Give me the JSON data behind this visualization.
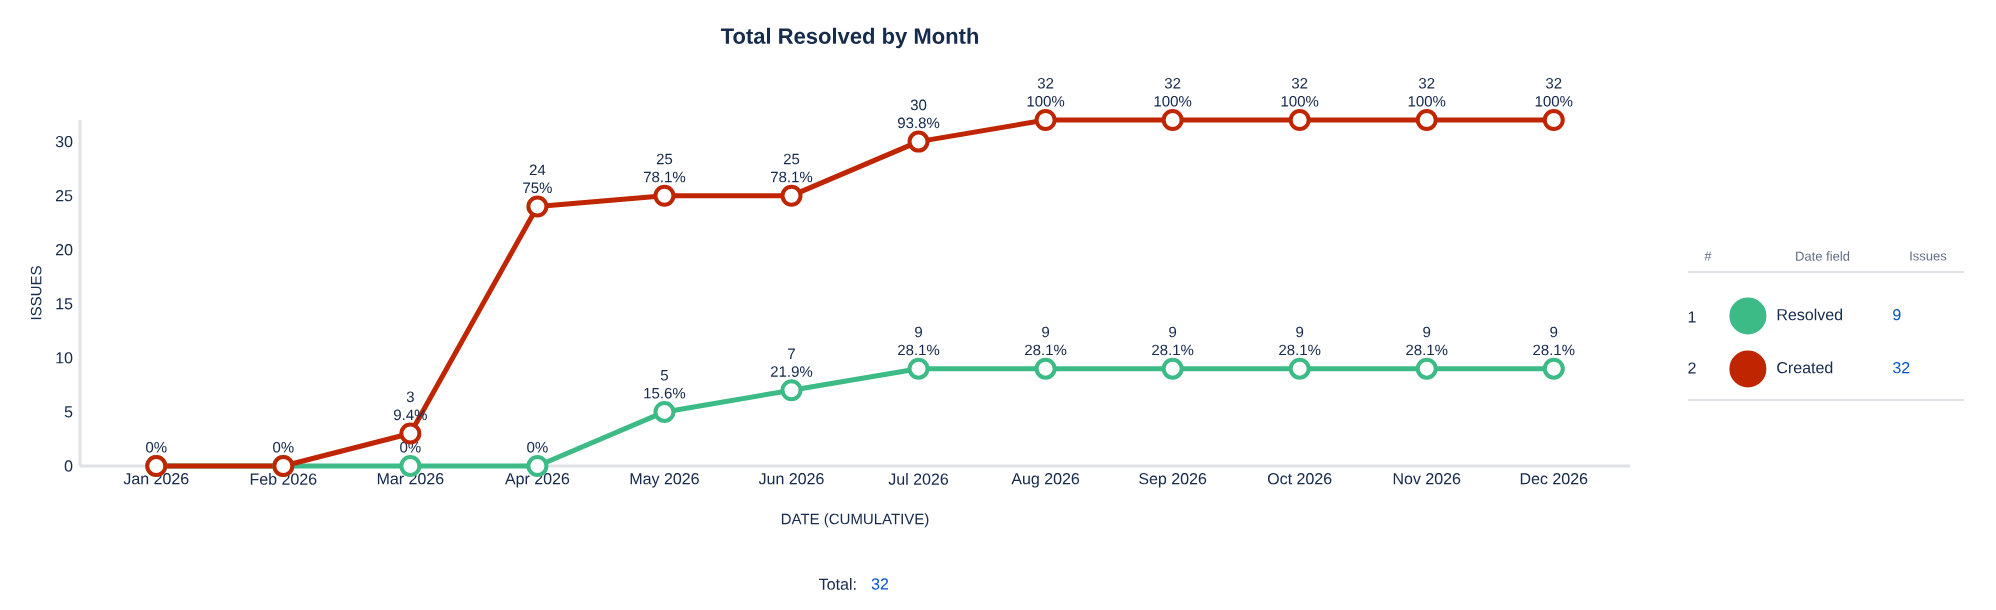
{
  "chart_data": {
    "type": "line",
    "title": "Total Resolved by Month",
    "xlabel": "DATE (CUMULATIVE)",
    "ylabel": "ISSUES",
    "categories": [
      "Jan 2026",
      "Feb 2026",
      "Mar 2026",
      "Apr 2026",
      "May 2026",
      "Jun 2026",
      "Jul 2026",
      "Aug 2026",
      "Sep 2026",
      "Oct 2026",
      "Nov 2026",
      "Dec 2026"
    ],
    "series": [
      {
        "name": "Resolved",
        "color": "#3dbb87",
        "values": [
          0,
          0,
          0,
          0,
          5,
          7,
          9,
          9,
          9,
          9,
          9,
          9
        ],
        "value_labels": [
          null,
          null,
          null,
          null,
          "5",
          "7",
          "9",
          "9",
          "9",
          "9",
          "9",
          "9"
        ]
      },
      {
        "name": "Created",
        "color": "#bf2600",
        "values": [
          0,
          0,
          3,
          24,
          25,
          25,
          30,
          32,
          32,
          32,
          32,
          32
        ],
        "value_labels": [
          null,
          null,
          "3",
          "24",
          "25",
          "25",
          "30",
          "32",
          "32",
          "32",
          "32",
          "32"
        ]
      }
    ],
    "ylim": [
      0,
      32
    ],
    "yticks": [
      0,
      5,
      10,
      15,
      20,
      25,
      30
    ],
    "grid": false,
    "legend": "right",
    "marker": "circle",
    "line_style": "solid",
    "annotations": [
      "#",
      "Date field",
      "Issues",
      "1",
      "2",
      "9",
      "32",
      "Total:",
      "32",
      {
        "text": "0%",
        "x": "Mar 2026",
        "y": 0
      },
      {
        "text": "0%",
        "x": "Apr 2026",
        "y": 0
      },
      {
        "text": "15.6%",
        "x": "May 2026",
        "y": 5
      },
      {
        "text": "21.9%",
        "x": "Jun 2026",
        "y": 7
      },
      {
        "text": "28.1%",
        "x": "Jul 2026",
        "y": 9
      },
      {
        "text": "28.1%",
        "x": "Aug 2026",
        "y": 9
      },
      {
        "text": "28.1%",
        "x": "Sep 2026",
        "y": 9
      },
      {
        "text": "28.1%",
        "x": "Oct 2026",
        "y": 9
      },
      {
        "text": "28.1%",
        "x": "Nov 2026",
        "y": 9
      },
      {
        "text": "28.1%",
        "x": "Dec 2026",
        "y": 9
      },
      {
        "text": "0%",
        "x": "Jan 2026",
        "y": 0
      },
      {
        "text": "0%",
        "x": "Feb 2026",
        "y": 0
      },
      {
        "text": "9.4%",
        "x": "Mar 2026",
        "y": 3
      },
      {
        "text": "75%",
        "x": "Apr 2026",
        "y": 24
      },
      {
        "text": "78.1%",
        "x": "May 2026",
        "y": 25
      },
      {
        "text": "78.1%",
        "x": "Jun 2026",
        "y": 25
      },
      {
        "text": "93.8%",
        "x": "Jul 2026",
        "y": 30
      },
      {
        "text": "100%",
        "x": "Aug 2026",
        "y": 32
      },
      {
        "text": "100%",
        "x": "Sep 2026",
        "y": 32
      },
      {
        "text": "100%",
        "x": "Oct 2026",
        "y": 32
      },
      {
        "text": "100%",
        "x": "Nov 2026",
        "y": 32
      },
      {
        "text": "100%",
        "x": "Dec 2026",
        "y": 32
      }
    ]
  }
}
